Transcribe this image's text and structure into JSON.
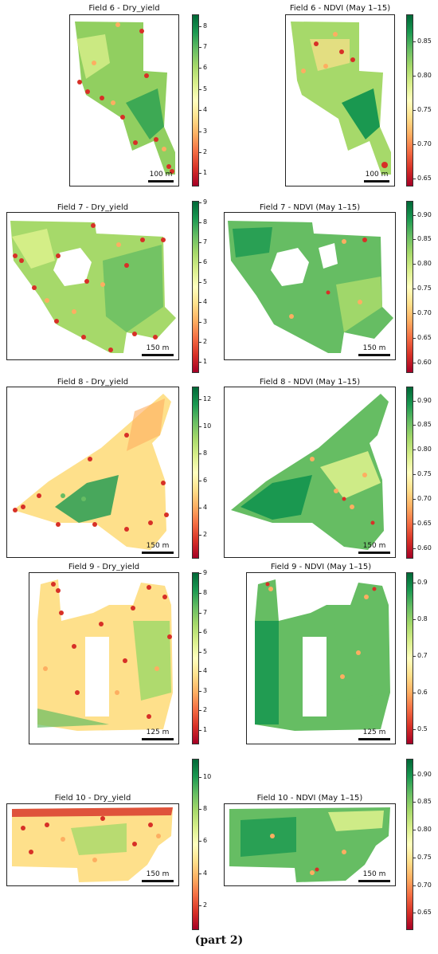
{
  "caption": "(part 2)",
  "panels": [
    {
      "id": "f6y",
      "title": "Field 6 - Dry_yield",
      "scale": "100 m",
      "ticks": [
        "8",
        "7",
        "6",
        "5",
        "4",
        "3",
        "2",
        "1"
      ],
      "tick_values": [
        8,
        7,
        6,
        5,
        4,
        3,
        2,
        1
      ],
      "range": [
        0.4,
        8.6
      ],
      "kind": "yield"
    },
    {
      "id": "f6n",
      "title": "Field 6 - NDVI (May 1–15)",
      "scale": "100 m",
      "ticks": [
        "0.85",
        "0.80",
        "0.75",
        "0.70",
        "0.65"
      ],
      "tick_values": [
        0.85,
        0.8,
        0.75,
        0.7,
        0.65
      ],
      "range": [
        0.64,
        0.89
      ],
      "kind": "ndvi"
    },
    {
      "id": "f7y",
      "title": "Field 7 - Dry_yield",
      "scale": "150 m",
      "ticks": [
        "9",
        "8",
        "7",
        "6",
        "5",
        "4",
        "3",
        "2",
        "1"
      ],
      "tick_values": [
        9,
        8,
        7,
        6,
        5,
        4,
        3,
        2,
        1
      ],
      "range": [
        0.5,
        9.1
      ],
      "kind": "yield"
    },
    {
      "id": "f7n",
      "title": "Field 7 - NDVI (May 1–15)",
      "scale": "150 m",
      "ticks": [
        "0.90",
        "0.85",
        "0.80",
        "0.75",
        "0.70",
        "0.65",
        "0.60"
      ],
      "tick_values": [
        0.9,
        0.85,
        0.8,
        0.75,
        0.7,
        0.65,
        0.6
      ],
      "range": [
        0.58,
        0.93
      ],
      "kind": "ndvi"
    },
    {
      "id": "f8y",
      "title": "Field 8 - Dry_yield",
      "scale": "150 m",
      "ticks": [
        "12",
        "10",
        "8",
        "6",
        "4",
        "2"
      ],
      "tick_values": [
        12,
        10,
        8,
        6,
        4,
        2
      ],
      "range": [
        0.3,
        13
      ],
      "kind": "yield"
    },
    {
      "id": "f8n",
      "title": "Field 8 - NDVI (May 1–15)",
      "scale": "150 m",
      "ticks": [
        "0.90",
        "0.85",
        "0.80",
        "0.75",
        "0.70",
        "0.65",
        "0.60"
      ],
      "tick_values": [
        0.9,
        0.85,
        0.8,
        0.75,
        0.7,
        0.65,
        0.6
      ],
      "range": [
        0.58,
        0.93
      ],
      "kind": "ndvi"
    },
    {
      "id": "f9y",
      "title": "Field 9 - Dry_yield",
      "scale": "125 m",
      "ticks": [
        "9",
        "8",
        "7",
        "6",
        "5",
        "4",
        "3",
        "2",
        "1"
      ],
      "tick_values": [
        9,
        8,
        7,
        6,
        5,
        4,
        3,
        2,
        1
      ],
      "range": [
        0.3,
        9.1
      ],
      "kind": "yield"
    },
    {
      "id": "f9n",
      "title": "Field 9 - NDVI (May 1–15)",
      "scale": "125 m",
      "ticks": [
        "0.9",
        "0.8",
        "0.7",
        "0.6",
        "0.5"
      ],
      "tick_values": [
        0.9,
        0.8,
        0.7,
        0.6,
        0.5
      ],
      "range": [
        0.46,
        0.93
      ],
      "kind": "ndvi"
    },
    {
      "id": "f10y",
      "title": "Field 10 - Dry_yield",
      "scale": "150 m",
      "ticks": [
        "10",
        "8",
        "6",
        "4",
        "2"
      ],
      "tick_values": [
        10,
        8,
        6,
        4,
        2
      ],
      "range": [
        0.5,
        11.2
      ],
      "kind": "yield"
    },
    {
      "id": "f10n",
      "title": "Field 10 - NDVI (May 1–15)",
      "scale": "150 m",
      "ticks": [
        "0.90",
        "0.85",
        "0.80",
        "0.75",
        "0.70",
        "0.65"
      ],
      "tick_values": [
        0.9,
        0.85,
        0.8,
        0.75,
        0.7,
        0.65
      ],
      "range": [
        0.62,
        0.93
      ],
      "kind": "ndvi"
    }
  ]
}
